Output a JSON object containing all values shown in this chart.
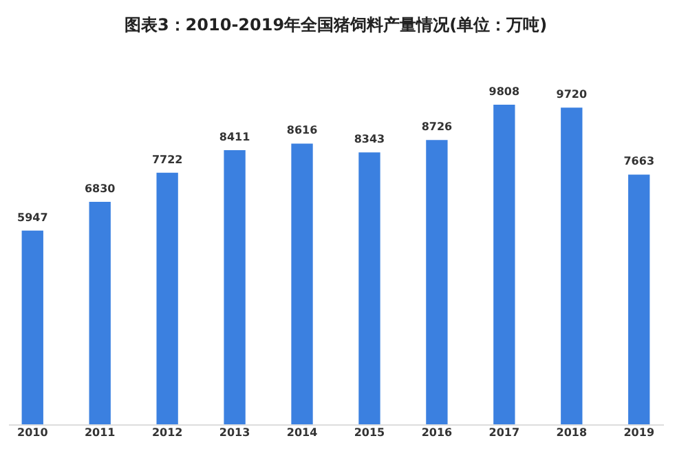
{
  "chart_data": {
    "type": "bar",
    "title": "图表3：2010-2019年全国猪饲料产量情况(单位：万吨)",
    "categories": [
      "2010",
      "2011",
      "2012",
      "2013",
      "2014",
      "2015",
      "2016",
      "2017",
      "2018",
      "2019"
    ],
    "values": [
      5947,
      6830,
      7722,
      8411,
      8616,
      8343,
      8726,
      9808,
      9720,
      7663
    ],
    "color": "#3b80e0",
    "data_labels": true
  }
}
